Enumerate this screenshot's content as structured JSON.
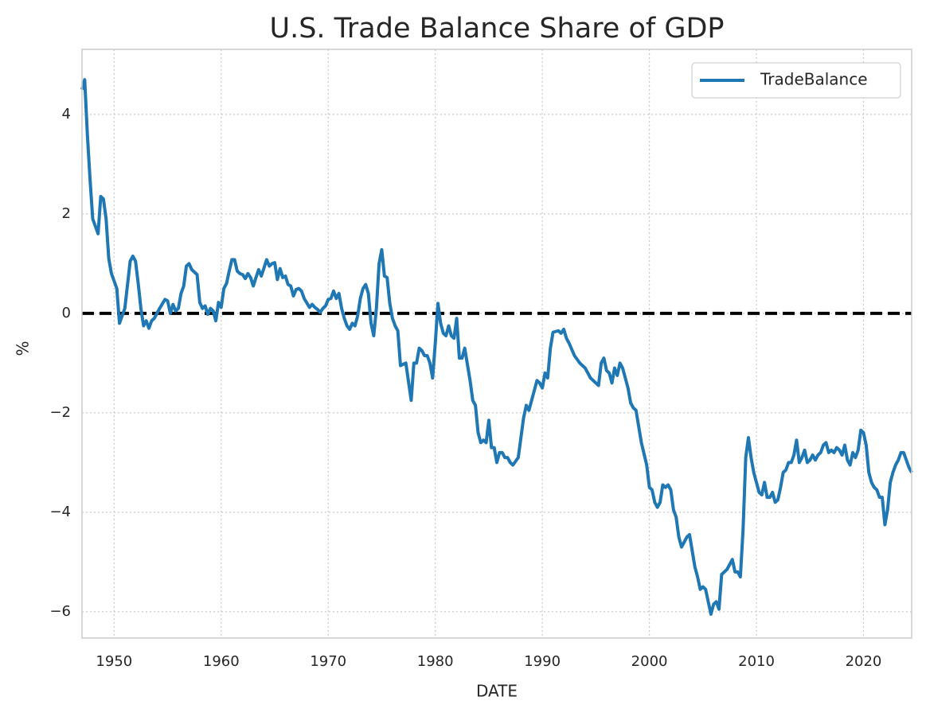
{
  "chart_data": {
    "type": "line",
    "title": "U.S. Trade Balance Share of GDP",
    "xlabel": "DATE",
    "ylabel": "%",
    "x": [
      1947.0,
      1947.25,
      1947.5,
      1947.75,
      1948.0,
      1948.5,
      1948.75,
      1949.0,
      1949.25,
      1949.5,
      1949.75,
      1950.25,
      1950.5,
      1950.75,
      1951.0,
      1951.5,
      1951.75,
      1952.0,
      1952.25,
      1952.5,
      1952.75,
      1953.0,
      1953.25,
      1953.5,
      1953.75,
      1954.25,
      1954.75,
      1955.0,
      1955.25,
      1955.5,
      1955.75,
      1956.0,
      1956.25,
      1956.5,
      1956.75,
      1957.0,
      1957.25,
      1957.75,
      1958.0,
      1958.25,
      1958.5,
      1958.75,
      1959.0,
      1959.25,
      1959.5,
      1959.75,
      1960.0,
      1960.25,
      1960.5,
      1960.75,
      1961.0,
      1961.25,
      1961.5,
      1961.75,
      1962.0,
      1962.25,
      1962.5,
      1962.75,
      1963.0,
      1963.25,
      1963.5,
      1963.75,
      1964.25,
      1964.5,
      1964.75,
      1965.0,
      1965.25,
      1965.5,
      1965.75,
      1966.0,
      1966.25,
      1966.5,
      1966.75,
      1967.0,
      1967.25,
      1967.5,
      1967.75,
      1968.25,
      1968.5,
      1968.75,
      1969.0,
      1969.25,
      1969.5,
      1969.75,
      1970.0,
      1970.25,
      1970.5,
      1970.75,
      1971.0,
      1971.25,
      1971.5,
      1971.75,
      1972.0,
      1972.25,
      1972.5,
      1972.75,
      1973.0,
      1973.25,
      1973.5,
      1973.75,
      1974.0,
      1974.25,
      1974.5,
      1974.75,
      1975.0,
      1975.25,
      1975.5,
      1975.75,
      1976.0,
      1976.25,
      1976.5,
      1976.75,
      1977.25,
      1977.75,
      1978.0,
      1978.25,
      1978.5,
      1978.75,
      1979.0,
      1979.25,
      1979.5,
      1979.75,
      1980.0,
      1980.25,
      1980.5,
      1980.75,
      1981.0,
      1981.25,
      1981.5,
      1981.75,
      1982.0,
      1982.25,
      1982.5,
      1982.75,
      1983.25,
      1983.5,
      1983.75,
      1984.0,
      1984.25,
      1984.5,
      1984.75,
      1985.0,
      1985.25,
      1985.5,
      1985.75,
      1986.0,
      1986.25,
      1986.5,
      1986.75,
      1987.0,
      1987.25,
      1987.75,
      1988.25,
      1988.5,
      1988.75,
      1989.0,
      1989.5,
      1989.75,
      1990.0,
      1990.25,
      1990.5,
      1990.75,
      1991.0,
      1991.5,
      1991.75,
      1992.0,
      1992.25,
      1992.5,
      1993.0,
      1993.5,
      1994.0,
      1994.5,
      1995.0,
      1995.25,
      1995.5,
      1995.75,
      1996.0,
      1996.25,
      1996.5,
      1996.75,
      1997.0,
      1997.25,
      1997.5,
      1997.75,
      1998.0,
      1998.25,
      1998.5,
      1998.75,
      1999.25,
      1999.75,
      2000.0,
      2000.25,
      2000.5,
      2000.75,
      2001.0,
      2001.25,
      2001.5,
      2001.75,
      2002.0,
      2002.25,
      2002.5,
      2002.75,
      2003.0,
      2003.25,
      2003.5,
      2003.75,
      2004.25,
      2004.5,
      2004.75,
      2005.0,
      2005.25,
      2005.5,
      2005.75,
      2006.0,
      2006.25,
      2006.5,
      2006.75,
      2007.0,
      2007.25,
      2007.5,
      2007.75,
      2008.0,
      2008.25,
      2008.5,
      2008.75,
      2009.0,
      2009.25,
      2009.5,
      2009.75,
      2010.0,
      2010.25,
      2010.5,
      2010.75,
      2011.0,
      2011.25,
      2011.5,
      2011.75,
      2012.0,
      2012.25,
      2012.5,
      2012.75,
      2013.0,
      2013.25,
      2013.5,
      2013.75,
      2014.0,
      2014.25,
      2014.5,
      2014.75,
      2015.0,
      2015.25,
      2015.5,
      2015.75,
      2016.0,
      2016.25,
      2016.5,
      2016.75,
      2017.0,
      2017.25,
      2017.5,
      2017.75,
      2018.0,
      2018.25,
      2018.5,
      2018.75,
      2019.0,
      2019.25,
      2019.5,
      2019.75,
      2020.0,
      2020.25,
      2020.5,
      2020.75,
      2021.0,
      2021.25,
      2021.5,
      2021.75,
      2022.0,
      2022.25,
      2022.5,
      2022.75,
      2023.0,
      2023.25,
      2023.5,
      2023.75,
      2024.0,
      2024.25,
      2024.5
    ],
    "series": [
      {
        "name": "TradeBalance",
        "color": "#1f77b4",
        "values": [
          4.5,
          4.7,
          3.6,
          2.7,
          1.9,
          1.6,
          2.35,
          2.3,
          1.9,
          1.1,
          0.8,
          0.5,
          -0.2,
          -0.05,
          0.1,
          1.05,
          1.15,
          1.05,
          0.6,
          0.1,
          -0.25,
          -0.15,
          -0.3,
          -0.15,
          -0.1,
          0.1,
          0.28,
          0.25,
          0.0,
          0.18,
          0.05,
          0.1,
          0.4,
          0.55,
          0.95,
          1.0,
          0.88,
          0.78,
          0.22,
          0.1,
          0.15,
          -0.02,
          0.1,
          0.05,
          -0.15,
          0.22,
          0.12,
          0.5,
          0.6,
          0.85,
          1.08,
          1.08,
          0.85,
          0.8,
          0.78,
          0.7,
          0.8,
          0.72,
          0.55,
          0.72,
          0.88,
          0.75,
          1.08,
          0.95,
          1.0,
          1.02,
          0.68,
          0.9,
          0.72,
          0.75,
          0.58,
          0.55,
          0.35,
          0.48,
          0.5,
          0.45,
          0.3,
          0.12,
          0.18,
          0.12,
          0.08,
          0.02,
          0.1,
          0.15,
          0.28,
          0.3,
          0.45,
          0.3,
          0.4,
          0.1,
          -0.1,
          -0.25,
          -0.32,
          -0.2,
          -0.25,
          -0.05,
          0.3,
          0.5,
          0.58,
          0.4,
          -0.2,
          -0.45,
          0.1,
          1.0,
          1.28,
          0.75,
          0.72,
          0.2,
          -0.1,
          -0.25,
          -0.35,
          -1.05,
          -1.0,
          -1.75,
          -1.0,
          -1.0,
          -0.7,
          -0.75,
          -0.85,
          -0.85,
          -1.0,
          -1.3,
          -0.6,
          0.2,
          -0.2,
          -0.4,
          -0.45,
          -0.25,
          -0.45,
          -0.5,
          -0.1,
          -0.9,
          -0.9,
          -0.7,
          -1.35,
          -1.75,
          -1.85,
          -2.4,
          -2.6,
          -2.55,
          -2.6,
          -2.15,
          -2.7,
          -2.7,
          -3.0,
          -2.8,
          -2.8,
          -2.9,
          -2.9,
          -3.0,
          -3.05,
          -2.9,
          -2.1,
          -1.85,
          -1.95,
          -1.75,
          -1.35,
          -1.4,
          -1.5,
          -1.2,
          -1.3,
          -0.7,
          -0.38,
          -0.35,
          -0.4,
          -0.32,
          -0.5,
          -0.6,
          -0.85,
          -1.0,
          -1.1,
          -1.3,
          -1.4,
          -1.45,
          -1.0,
          -0.9,
          -1.15,
          -1.2,
          -1.4,
          -1.1,
          -1.25,
          -1.0,
          -1.1,
          -1.3,
          -1.5,
          -1.8,
          -1.9,
          -1.95,
          -2.6,
          -3.05,
          -3.5,
          -3.55,
          -3.8,
          -3.9,
          -3.8,
          -3.45,
          -3.5,
          -3.45,
          -3.55,
          -3.95,
          -4.1,
          -4.5,
          -4.7,
          -4.6,
          -4.5,
          -4.45,
          -5.1,
          -5.3,
          -5.55,
          -5.5,
          -5.55,
          -5.8,
          -6.05,
          -5.85,
          -5.8,
          -5.95,
          -5.25,
          -5.2,
          -5.15,
          -5.05,
          -4.95,
          -5.2,
          -5.2,
          -5.3,
          -4.35,
          -2.9,
          -2.5,
          -2.9,
          -3.2,
          -3.4,
          -3.6,
          -3.65,
          -3.4,
          -3.7,
          -3.7,
          -3.6,
          -3.8,
          -3.75,
          -3.5,
          -3.2,
          -3.15,
          -3.0,
          -3.0,
          -2.85,
          -2.55,
          -3.0,
          -2.9,
          -2.75,
          -3.0,
          -2.95,
          -2.85,
          -2.95,
          -2.85,
          -2.8,
          -2.65,
          -2.6,
          -2.8,
          -2.75,
          -2.8,
          -2.7,
          -2.75,
          -2.85,
          -2.65,
          -2.95,
          -3.05,
          -2.8,
          -2.9,
          -2.75,
          -2.35,
          -2.4,
          -2.65,
          -3.2,
          -3.4,
          -3.5,
          -3.55,
          -3.7,
          -3.7,
          -4.25,
          -3.95,
          -3.4,
          -3.2,
          -3.05,
          -2.95,
          -2.8,
          -2.8,
          -2.95,
          -3.1,
          -3.2
        ]
      }
    ],
    "xlim": [
      1947.0,
      2024.5
    ],
    "ylim": [
      -6.53,
      5.31
    ],
    "xticks": [
      1950,
      1960,
      1970,
      1980,
      1990,
      2000,
      2010,
      2020
    ],
    "yticks": [
      {
        "value": -6,
        "label": "−6"
      },
      {
        "value": -4,
        "label": "−4"
      },
      {
        "value": -2,
        "label": "−2"
      },
      0,
      2,
      4
    ],
    "hline": 0,
    "grid": true,
    "legend": "upper right"
  }
}
